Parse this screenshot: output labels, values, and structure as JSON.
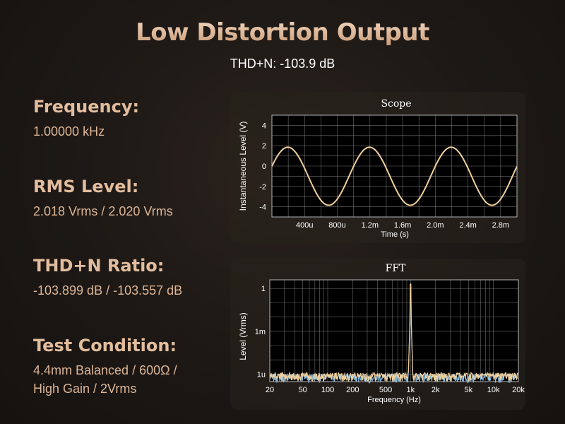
{
  "header": {
    "title": "Low Distortion Output",
    "subtitle": "THD+N: -103.9 dB"
  },
  "specs": [
    {
      "label": "Frequency:",
      "lines": [
        "1.00000 kHz"
      ]
    },
    {
      "label": "RMS Level:",
      "lines": [
        "2.018 Vrms / 2.020 Vrms"
      ]
    },
    {
      "label": "THD+N Ratio:",
      "lines": [
        "-103.899 dB / -103.557 dB"
      ]
    },
    {
      "label": "Test Condition:",
      "lines": [
        "4.4mm Balanced / 600Ω /",
        "High Gain / 2Vrms"
      ]
    }
  ],
  "colors": {
    "trace": "#f0d09c",
    "trace2": "#7fb2d8",
    "grid": "#8a8a8a",
    "plot_bg": "#000000"
  },
  "chart_data": [
    {
      "type": "line",
      "title": "Scope",
      "xlabel": "Time (s)",
      "ylabel": "Instantaneous Level (V)",
      "xlim": [
        0,
        0.003
      ],
      "ylim": [
        -5,
        5
      ],
      "x_ticks": [
        0.0004,
        0.0008,
        0.0012,
        0.0016,
        0.002,
        0.0024,
        0.0028
      ],
      "x_tick_labels": [
        "400u",
        "800u",
        "1.2m",
        "1.6m",
        "2.0m",
        "2.4m",
        "2.8m"
      ],
      "y_ticks": [
        4,
        2,
        0,
        -2,
        -4
      ],
      "y_tick_labels": [
        "4",
        "2",
        "0",
        "-2",
        "-4"
      ],
      "series": [
        {
          "frequency_hz": 1000,
          "amplitude_v": 2.85,
          "offset_v": -1.0,
          "phase_deg": 20
        }
      ],
      "grid": true
    },
    {
      "type": "line",
      "title": "FFT",
      "xlabel": "Frequency (Hz)",
      "ylabel": "Level (Vrms)",
      "xscale": "log",
      "yscale": "log",
      "xlim": [
        20,
        20000
      ],
      "ylim": [
        3e-07,
        4
      ],
      "x_tick_values": [
        20,
        50,
        100,
        200,
        500,
        1000,
        2000,
        5000,
        10000,
        20000
      ],
      "x_tick_labels": [
        "20",
        "50",
        "100",
        "200",
        "500",
        "1k",
        "2k",
        "5k",
        "10k",
        "20k"
      ],
      "y_tick_values": [
        1,
        0.001,
        1e-06
      ],
      "y_tick_labels": [
        "1",
        "1m",
        "1u"
      ],
      "series": [
        {
          "peak_freq_hz": 1000,
          "peak_level_vrms": 2.02,
          "noise_floor_vrms": 6e-07
        },
        {
          "peak_freq_hz": 1000,
          "peak_level_vrms": 2.02,
          "noise_floor_vrms": 5e-07
        }
      ],
      "grid": true
    }
  ]
}
